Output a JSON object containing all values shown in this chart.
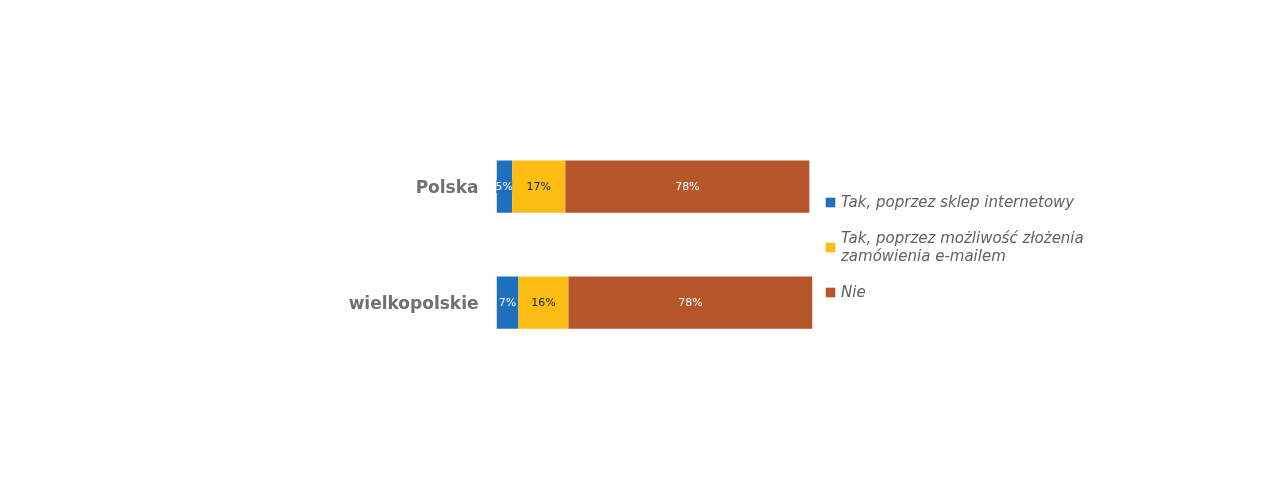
{
  "chart_data": {
    "type": "bar",
    "orientation": "horizontal",
    "stacked": true,
    "categories": [
      "Polska",
      "wielkopolskie"
    ],
    "xlim": [
      0,
      101
    ],
    "tick_labels": "y",
    "grid": false,
    "legend": "right",
    "series": [
      {
        "name": "Tak, poprzez sklep internetowy",
        "color": "#1f6fbf",
        "values": [
          5,
          7
        ],
        "value_labels": [
          "5%",
          "7%"
        ]
      },
      {
        "name": "Tak, poprzez możliwość złożenia zamówienia e-mailem",
        "color": "#fbbd13",
        "values": [
          17,
          16
        ],
        "value_labels": [
          "17%",
          "16%"
        ]
      },
      {
        "name": "Nie",
        "color": "#b7562a",
        "values": [
          78,
          78
        ],
        "value_labels": [
          "78%",
          "78%"
        ]
      }
    ]
  }
}
